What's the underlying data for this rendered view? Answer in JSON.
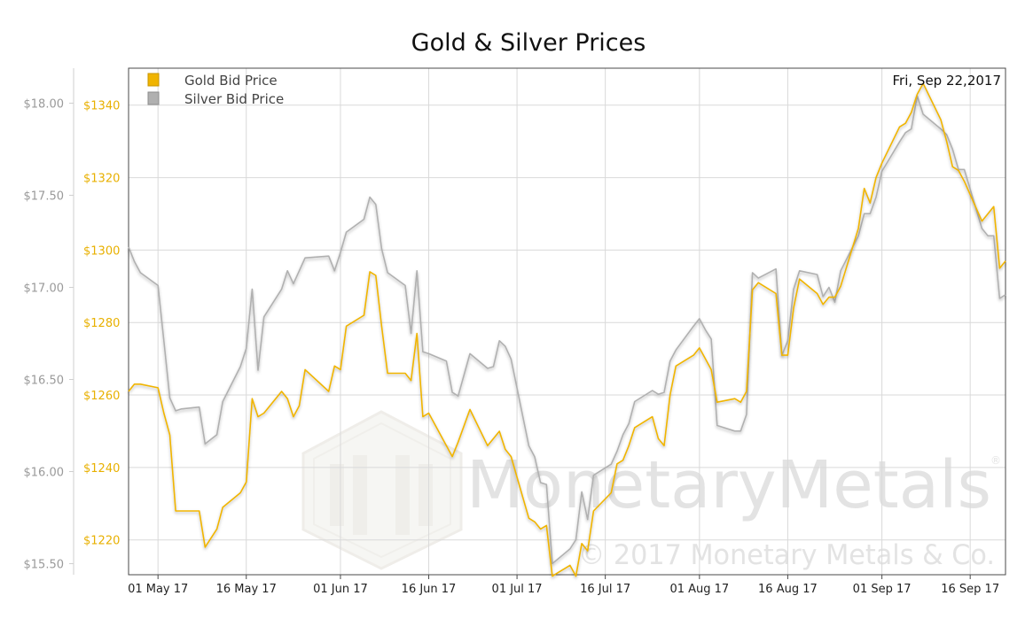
{
  "chart_data": {
    "type": "line",
    "title": "Gold & Silver Prices",
    "date_label": "Fri, Sep 22,2017",
    "x_ticks": [
      "01 May 17",
      "16 May 17",
      "01 Jun 17",
      "16 Jun 17",
      "01 Jul 17",
      "16 Jul 17",
      "01 Aug 17",
      "16 Aug 17",
      "01 Sep 17",
      "16 Sep 17"
    ],
    "x_tick_dates": [
      "2017-05-01",
      "2017-05-16",
      "2017-06-01",
      "2017-06-16",
      "2017-07-01",
      "2017-07-16",
      "2017-08-01",
      "2017-08-16",
      "2017-09-01",
      "2017-09-16"
    ],
    "x_range": [
      "2017-04-26",
      "2017-09-22"
    ],
    "axes": {
      "silver": {
        "ticks": [
          "$15.50",
          "$16.00",
          "$16.50",
          "$17.00",
          "$17.50",
          "$18.00"
        ],
        "range": [
          15.44,
          18.19
        ]
      },
      "gold": {
        "ticks": [
          "$1220",
          "$1240",
          "$1260",
          "$1280",
          "$1300",
          "$1320",
          "$1340"
        ],
        "range": [
          1210.4,
          1350.2
        ]
      }
    },
    "grid": true,
    "legend_position": "top-left",
    "series": [
      {
        "name": "Gold Bid Price",
        "color": "#f0b400",
        "axis": "gold",
        "points": [
          [
            "2017-04-26",
            1261
          ],
          [
            "2017-04-27",
            1263
          ],
          [
            "2017-04-28",
            1263
          ],
          [
            "2017-05-01",
            1262
          ],
          [
            "2017-05-02",
            1255
          ],
          [
            "2017-05-03",
            1249
          ],
          [
            "2017-05-04",
            1228
          ],
          [
            "2017-05-05",
            1228
          ],
          [
            "2017-05-08",
            1228
          ],
          [
            "2017-05-09",
            1218
          ],
          [
            "2017-05-11",
            1223
          ],
          [
            "2017-05-12",
            1229
          ],
          [
            "2017-05-15",
            1233
          ],
          [
            "2017-05-16",
            1236
          ],
          [
            "2017-05-17",
            1259
          ],
          [
            "2017-05-18",
            1254
          ],
          [
            "2017-05-19",
            1255
          ],
          [
            "2017-05-22",
            1261
          ],
          [
            "2017-05-23",
            1259
          ],
          [
            "2017-05-24",
            1254
          ],
          [
            "2017-05-25",
            1257
          ],
          [
            "2017-05-26",
            1267
          ],
          [
            "2017-05-30",
            1261
          ],
          [
            "2017-05-31",
            1268
          ],
          [
            "2017-06-01",
            1267
          ],
          [
            "2017-06-02",
            1279
          ],
          [
            "2017-06-05",
            1282
          ],
          [
            "2017-06-06",
            1294
          ],
          [
            "2017-06-07",
            1293
          ],
          [
            "2017-06-08",
            1279
          ],
          [
            "2017-06-09",
            1266
          ],
          [
            "2017-06-12",
            1266
          ],
          [
            "2017-06-13",
            1264
          ],
          [
            "2017-06-14",
            1277
          ],
          [
            "2017-06-15",
            1254
          ],
          [
            "2017-06-16",
            1255
          ],
          [
            "2017-06-19",
            1246
          ],
          [
            "2017-06-20",
            1243
          ],
          [
            "2017-06-21",
            1247
          ],
          [
            "2017-06-23",
            1256
          ],
          [
            "2017-06-26",
            1246
          ],
          [
            "2017-06-27",
            1248
          ],
          [
            "2017-06-28",
            1250
          ],
          [
            "2017-06-29",
            1245
          ],
          [
            "2017-06-30",
            1243
          ],
          [
            "2017-07-03",
            1226
          ],
          [
            "2017-07-04",
            1225
          ],
          [
            "2017-07-05",
            1223
          ],
          [
            "2017-07-06",
            1224
          ],
          [
            "2017-07-07",
            1210
          ],
          [
            "2017-07-10",
            1213
          ],
          [
            "2017-07-11",
            1210
          ],
          [
            "2017-07-12",
            1219
          ],
          [
            "2017-07-13",
            1217
          ],
          [
            "2017-07-14",
            1228
          ],
          [
            "2017-07-17",
            1233
          ],
          [
            "2017-07-18",
            1241
          ],
          [
            "2017-07-19",
            1242
          ],
          [
            "2017-07-20",
            1246
          ],
          [
            "2017-07-21",
            1251
          ],
          [
            "2017-07-24",
            1254
          ],
          [
            "2017-07-25",
            1248
          ],
          [
            "2017-07-26",
            1246
          ],
          [
            "2017-07-27",
            1260
          ],
          [
            "2017-07-28",
            1268
          ],
          [
            "2017-07-31",
            1271
          ],
          [
            "2017-08-01",
            1273
          ],
          [
            "2017-08-02",
            1270
          ],
          [
            "2017-08-03",
            1267
          ],
          [
            "2017-08-04",
            1258
          ],
          [
            "2017-08-07",
            1259
          ],
          [
            "2017-08-08",
            1258
          ],
          [
            "2017-08-09",
            1261
          ],
          [
            "2017-08-10",
            1289
          ],
          [
            "2017-08-11",
            1291
          ],
          [
            "2017-08-14",
            1288
          ],
          [
            "2017-08-15",
            1271
          ],
          [
            "2017-08-16",
            1271
          ],
          [
            "2017-08-17",
            1284
          ],
          [
            "2017-08-18",
            1292
          ],
          [
            "2017-08-21",
            1288
          ],
          [
            "2017-08-22",
            1285
          ],
          [
            "2017-08-23",
            1287
          ],
          [
            "2017-08-24",
            1287
          ],
          [
            "2017-08-25",
            1290
          ],
          [
            "2017-08-28",
            1306
          ],
          [
            "2017-08-29",
            1317
          ],
          [
            "2017-08-30",
            1313
          ],
          [
            "2017-08-31",
            1320
          ],
          [
            "2017-09-01",
            1324
          ],
          [
            "2017-09-04",
            1334
          ],
          [
            "2017-09-05",
            1335
          ],
          [
            "2017-09-06",
            1338
          ],
          [
            "2017-09-07",
            1343
          ],
          [
            "2017-09-08",
            1346
          ],
          [
            "2017-09-11",
            1336
          ],
          [
            "2017-09-12",
            1330
          ],
          [
            "2017-09-13",
            1323
          ],
          [
            "2017-09-14",
            1322
          ],
          [
            "2017-09-15",
            1319
          ],
          [
            "2017-09-18",
            1308
          ],
          [
            "2017-09-19",
            1310
          ],
          [
            "2017-09-20",
            1312
          ],
          [
            "2017-09-21",
            1295
          ],
          [
            "2017-09-22",
            1297
          ]
        ]
      },
      {
        "name": "Silver Bid Price",
        "color": "#b0b0b0",
        "axis": "silver",
        "points": [
          [
            "2017-04-26",
            17.22
          ],
          [
            "2017-04-27",
            17.14
          ],
          [
            "2017-04-28",
            17.08
          ],
          [
            "2017-05-01",
            17.01
          ],
          [
            "2017-05-02",
            16.71
          ],
          [
            "2017-05-03",
            16.4
          ],
          [
            "2017-05-04",
            16.33
          ],
          [
            "2017-05-05",
            16.34
          ],
          [
            "2017-05-08",
            16.35
          ],
          [
            "2017-05-09",
            16.15
          ],
          [
            "2017-05-11",
            16.2
          ],
          [
            "2017-05-12",
            16.38
          ],
          [
            "2017-05-15",
            16.57
          ],
          [
            "2017-05-16",
            16.67
          ],
          [
            "2017-05-17",
            16.99
          ],
          [
            "2017-05-18",
            16.55
          ],
          [
            "2017-05-19",
            16.84
          ],
          [
            "2017-05-22",
            16.99
          ],
          [
            "2017-05-23",
            17.09
          ],
          [
            "2017-05-24",
            17.02
          ],
          [
            "2017-05-25",
            17.09
          ],
          [
            "2017-05-26",
            17.16
          ],
          [
            "2017-05-30",
            17.17
          ],
          [
            "2017-05-31",
            17.09
          ],
          [
            "2017-06-01",
            17.19
          ],
          [
            "2017-06-02",
            17.3
          ],
          [
            "2017-06-05",
            17.37
          ],
          [
            "2017-06-06",
            17.49
          ],
          [
            "2017-06-07",
            17.45
          ],
          [
            "2017-06-08",
            17.21
          ],
          [
            "2017-06-09",
            17.08
          ],
          [
            "2017-06-12",
            17.01
          ],
          [
            "2017-06-13",
            16.75
          ],
          [
            "2017-06-14",
            17.09
          ],
          [
            "2017-06-15",
            16.65
          ],
          [
            "2017-06-16",
            16.64
          ],
          [
            "2017-06-19",
            16.6
          ],
          [
            "2017-06-20",
            16.43
          ],
          [
            "2017-06-21",
            16.41
          ],
          [
            "2017-06-23",
            16.64
          ],
          [
            "2017-06-26",
            16.56
          ],
          [
            "2017-06-27",
            16.57
          ],
          [
            "2017-06-28",
            16.71
          ],
          [
            "2017-06-29",
            16.68
          ],
          [
            "2017-06-30",
            16.61
          ],
          [
            "2017-07-03",
            16.14
          ],
          [
            "2017-07-04",
            16.08
          ],
          [
            "2017-07-05",
            15.94
          ],
          [
            "2017-07-06",
            15.93
          ],
          [
            "2017-07-07",
            15.5
          ],
          [
            "2017-07-10",
            15.58
          ],
          [
            "2017-07-11",
            15.63
          ],
          [
            "2017-07-12",
            15.89
          ],
          [
            "2017-07-13",
            15.74
          ],
          [
            "2017-07-14",
            15.98
          ],
          [
            "2017-07-17",
            16.04
          ],
          [
            "2017-07-18",
            16.11
          ],
          [
            "2017-07-19",
            16.2
          ],
          [
            "2017-07-20",
            16.26
          ],
          [
            "2017-07-21",
            16.38
          ],
          [
            "2017-07-24",
            16.44
          ],
          [
            "2017-07-25",
            16.42
          ],
          [
            "2017-07-26",
            16.43
          ],
          [
            "2017-07-27",
            16.6
          ],
          [
            "2017-07-28",
            16.66
          ],
          [
            "2017-07-31",
            16.79
          ],
          [
            "2017-08-01",
            16.83
          ],
          [
            "2017-08-02",
            16.77
          ],
          [
            "2017-08-03",
            16.72
          ],
          [
            "2017-08-04",
            16.25
          ],
          [
            "2017-08-07",
            16.22
          ],
          [
            "2017-08-08",
            16.22
          ],
          [
            "2017-08-09",
            16.31
          ],
          [
            "2017-08-10",
            17.08
          ],
          [
            "2017-08-11",
            17.05
          ],
          [
            "2017-08-14",
            17.1
          ],
          [
            "2017-08-15",
            16.63
          ],
          [
            "2017-08-16",
            16.71
          ],
          [
            "2017-08-17",
            16.99
          ],
          [
            "2017-08-18",
            17.09
          ],
          [
            "2017-08-21",
            17.07
          ],
          [
            "2017-08-22",
            16.95
          ],
          [
            "2017-08-23",
            17.0
          ],
          [
            "2017-08-24",
            16.92
          ],
          [
            "2017-08-25",
            17.09
          ],
          [
            "2017-08-28",
            17.28
          ],
          [
            "2017-08-29",
            17.4
          ],
          [
            "2017-08-30",
            17.4
          ],
          [
            "2017-08-31",
            17.49
          ],
          [
            "2017-09-01",
            17.63
          ],
          [
            "2017-09-04",
            17.79
          ],
          [
            "2017-09-05",
            17.84
          ],
          [
            "2017-09-06",
            17.86
          ],
          [
            "2017-09-07",
            18.04
          ],
          [
            "2017-09-08",
            17.94
          ],
          [
            "2017-09-11",
            17.86
          ],
          [
            "2017-09-12",
            17.83
          ],
          [
            "2017-09-13",
            17.75
          ],
          [
            "2017-09-14",
            17.64
          ],
          [
            "2017-09-15",
            17.64
          ],
          [
            "2017-09-18",
            17.32
          ],
          [
            "2017-09-19",
            17.28
          ],
          [
            "2017-09-20",
            17.28
          ],
          [
            "2017-09-21",
            16.94
          ],
          [
            "2017-09-22",
            16.96
          ]
        ]
      }
    ]
  },
  "watermark": {
    "brand": "MonetaryMetals",
    "registered": "®",
    "copyright": "© 2017 Monetary Metals & Co."
  }
}
